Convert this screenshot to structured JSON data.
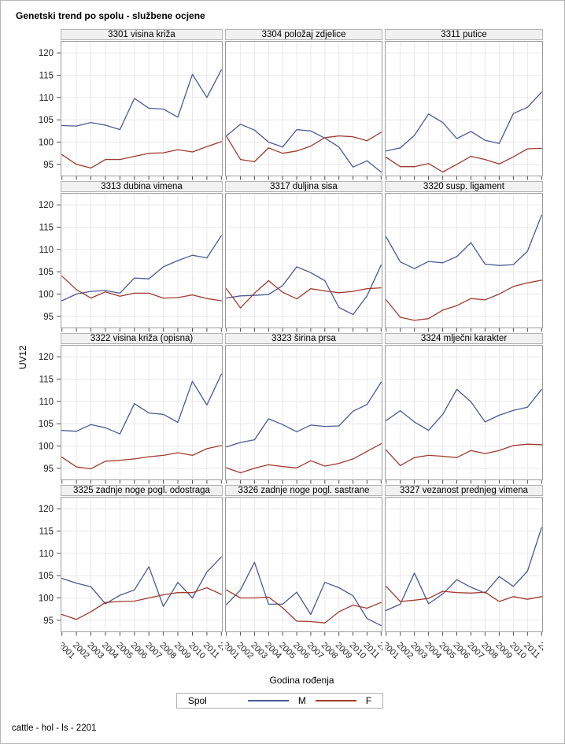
{
  "title": "Genetski trend po spolu - službene ocjene",
  "footer": "cattle - hol - ls - 2201",
  "axes": {
    "y_label": "UV12",
    "x_label": "Godina rođenja",
    "y_ticks": [
      120,
      115,
      110,
      105,
      100,
      95
    ],
    "ylim": [
      92.5,
      122.5
    ]
  },
  "legend": {
    "title": "Spol",
    "entries": [
      {
        "label": "M",
        "color": "#4a5a96"
      },
      {
        "label": "F",
        "color": "#a23b2e"
      }
    ]
  },
  "colors": {
    "male": "#4a5a96",
    "female": "#a23b2e",
    "grid": "#e8e8e8",
    "tick": "#4d4d4d",
    "panel_border": "#9c9c9c",
    "header_bg": "#f1f1f1"
  },
  "chart_data": {
    "type": "line",
    "title": "Genetski trend po spolu - službene ocjene",
    "xlabel": "Godina rođenja",
    "ylabel": "UV12",
    "ylim": [
      92.5,
      122.5
    ],
    "grid": true,
    "legend_position": "bottom",
    "x": [
      "2001",
      "2002",
      "2003",
      "2004",
      "2005",
      "2006",
      "2007",
      "2008",
      "2009",
      "2010",
      "2011",
      "2012"
    ],
    "panels": [
      {
        "title": "3301 visina križa",
        "series": [
          {
            "name": "M",
            "values": [
              103.7,
              103.6,
              104.4,
              103.8,
              102.8,
              109.8,
              107.6,
              107.4,
              105.6,
              115.2,
              110.0,
              116.2
            ]
          },
          {
            "name": "F",
            "values": [
              97.2,
              95.0,
              94.2,
              96.1,
              96.1,
              96.8,
              97.5,
              97.6,
              98.3,
              97.8,
              99.0,
              100.1
            ]
          }
        ]
      },
      {
        "title": "3304 položaj zdjelice",
        "series": [
          {
            "name": "M",
            "values": [
              101.4,
              104.0,
              102.7,
              100.0,
              98.9,
              102.8,
              102.5,
              100.9,
              98.9,
              94.4,
              95.8,
              93.3
            ]
          },
          {
            "name": "F",
            "values": [
              101.3,
              96.1,
              95.6,
              98.7,
              97.5,
              98.0,
              99.1,
              101.0,
              101.4,
              101.2,
              100.3,
              102.2
            ]
          }
        ]
      },
      {
        "title": "3311 putice",
        "series": [
          {
            "name": "M",
            "values": [
              98.0,
              98.7,
              101.5,
              106.3,
              104.4,
              100.8,
              102.4,
              100.4,
              99.7,
              106.4,
              107.8,
              111.2
            ]
          },
          {
            "name": "F",
            "values": [
              96.6,
              94.5,
              94.5,
              95.2,
              93.3,
              95.0,
              96.8,
              96.1,
              95.1,
              96.7,
              98.5,
              98.6
            ]
          }
        ]
      },
      {
        "title": "3313 dubina vimena",
        "series": [
          {
            "name": "M",
            "values": [
              98.5,
              100.0,
              100.6,
              100.8,
              100.2,
              103.6,
              103.4,
              106.1,
              107.5,
              108.7,
              108.1,
              113.1
            ]
          },
          {
            "name": "F",
            "values": [
              104.0,
              101.0,
              99.1,
              100.5,
              99.5,
              100.2,
              100.2,
              99.1,
              99.2,
              99.8,
              99.0,
              98.5
            ]
          }
        ]
      },
      {
        "title": "3317 duljina sisa",
        "series": [
          {
            "name": "M",
            "values": [
              99.1,
              99.6,
              99.7,
              99.9,
              101.9,
              106.1,
              104.8,
              103.0,
              97.0,
              95.4,
              99.6,
              106.5
            ]
          },
          {
            "name": "F",
            "values": [
              101.2,
              96.9,
              100.2,
              103.0,
              100.4,
              98.9,
              101.2,
              100.7,
              100.3,
              100.6,
              101.2,
              101.4
            ]
          }
        ]
      },
      {
        "title": "3320 susp. ligament",
        "series": [
          {
            "name": "M",
            "values": [
              112.8,
              107.2,
              105.7,
              107.3,
              107.0,
              108.4,
              111.5,
              106.7,
              106.4,
              106.6,
              109.6,
              117.7
            ]
          },
          {
            "name": "F",
            "values": [
              98.7,
              94.8,
              94.1,
              94.5,
              96.4,
              97.4,
              99.0,
              98.7,
              100.0,
              101.7,
              102.5,
              103.1
            ]
          }
        ]
      },
      {
        "title": "3322 visina križa (opisna)",
        "series": [
          {
            "name": "M",
            "values": [
              103.5,
              103.3,
              104.8,
              104.1,
              102.7,
              109.5,
              107.4,
              107.1,
              105.3,
              114.5,
              109.2,
              116.1
            ]
          },
          {
            "name": "F",
            "values": [
              97.5,
              95.3,
              94.9,
              96.6,
              96.8,
              97.1,
              97.6,
              97.9,
              98.5,
              97.9,
              99.4,
              100.1
            ]
          }
        ]
      },
      {
        "title": "3323 širina prsa",
        "series": [
          {
            "name": "M",
            "values": [
              99.8,
              100.8,
              101.4,
              106.1,
              104.8,
              103.2,
              104.7,
              104.4,
              104.5,
              107.8,
              109.3,
              114.3
            ]
          },
          {
            "name": "F",
            "values": [
              95.1,
              94.0,
              95.0,
              95.8,
              95.4,
              95.1,
              96.7,
              95.5,
              96.1,
              97.1,
              98.8,
              100.5
            ]
          }
        ]
      },
      {
        "title": "3324 mlječni karakter",
        "series": [
          {
            "name": "M",
            "values": [
              105.7,
              107.9,
              105.4,
              103.5,
              107.1,
              112.7,
              109.9,
              105.4,
              106.9,
              108.0,
              108.7,
              112.7
            ]
          },
          {
            "name": "F",
            "values": [
              99.1,
              95.6,
              97.4,
              97.9,
              97.7,
              97.4,
              99.0,
              98.3,
              99.0,
              100.1,
              100.4,
              100.3
            ]
          }
        ]
      },
      {
        "title": "3325 zadnje noge pogl. odostraga",
        "series": [
          {
            "name": "M",
            "values": [
              104.4,
              103.3,
              102.5,
              98.7,
              100.6,
              101.8,
              107.0,
              98.1,
              103.5,
              100.0,
              105.8,
              109.2
            ]
          },
          {
            "name": "F",
            "values": [
              96.3,
              95.2,
              96.9,
              99.0,
              99.2,
              99.3,
              100.0,
              100.7,
              101.2,
              101.2,
              102.3,
              100.8
            ]
          }
        ]
      },
      {
        "title": "3326 zadnje noge pogl. sastrane",
        "series": [
          {
            "name": "M",
            "values": [
              98.5,
              101.8,
              108.0,
              98.6,
              98.6,
              101.3,
              96.3,
              103.5,
              102.3,
              100.5,
              95.4,
              93.8
            ]
          },
          {
            "name": "F",
            "values": [
              101.8,
              100.0,
              100.0,
              100.2,
              97.8,
              94.8,
              94.7,
              94.4,
              96.9,
              98.4,
              97.7,
              99.0
            ]
          }
        ]
      },
      {
        "title": "3327 vezanost prednjeg vimena",
        "series": [
          {
            "name": "M",
            "values": [
              97.2,
              98.6,
              105.6,
              98.7,
              100.9,
              104.1,
              102.4,
              101.1,
              104.8,
              102.6,
              106.0,
              115.8
            ]
          },
          {
            "name": "F",
            "values": [
              102.6,
              99.2,
              99.5,
              99.9,
              101.5,
              101.2,
              101.1,
              101.3,
              99.2,
              100.3,
              99.7,
              100.3
            ]
          }
        ]
      }
    ]
  }
}
